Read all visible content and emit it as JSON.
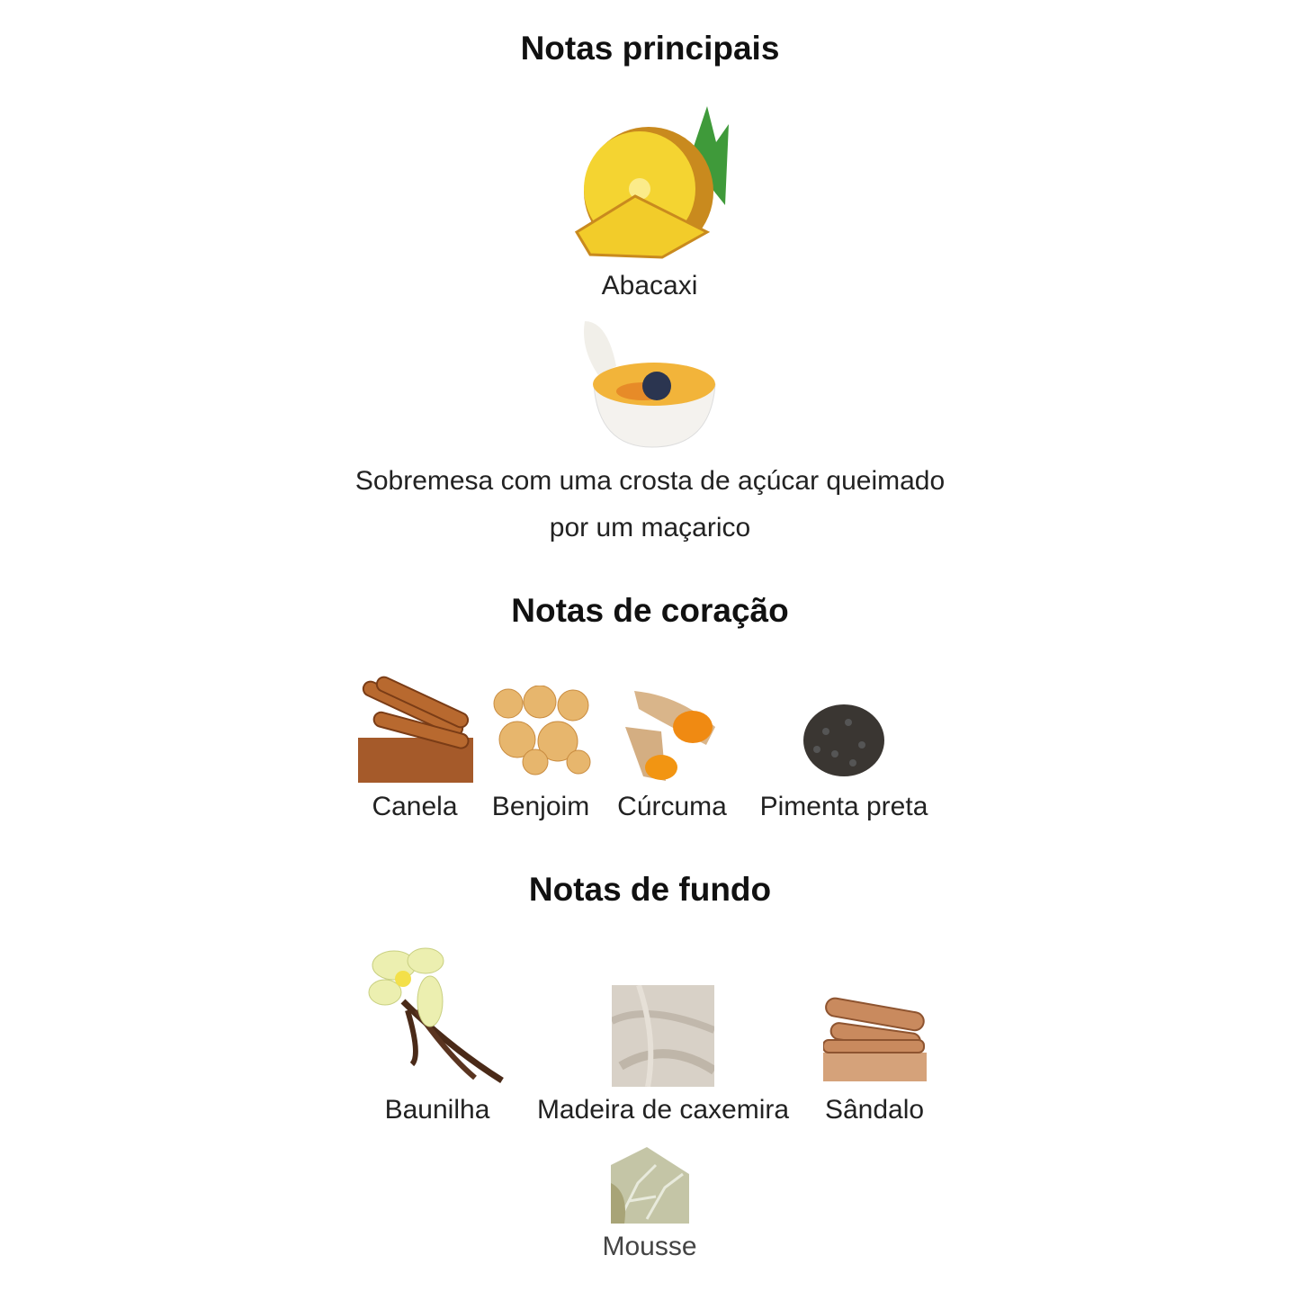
{
  "sections": [
    {
      "title": "Notas principais",
      "notes": [
        {
          "label": "Abacaxi",
          "icon": "pineapple-image"
        },
        {
          "label": "Sobremesa com uma crosta de açúcar queimado por um maçarico",
          "line1": "Sobremesa com uma crosta de açúcar queimado",
          "line2": "por um maçarico",
          "icon": "creme-brulee-image"
        }
      ]
    },
    {
      "title": "Notas de coração",
      "notes": [
        {
          "label": "Canela",
          "icon": "cinnamon-image"
        },
        {
          "label": "Benjoim",
          "icon": "benzoin-image"
        },
        {
          "label": "Cúrcuma",
          "icon": "turmeric-image"
        },
        {
          "label": "Pimenta preta",
          "icon": "black-pepper-image"
        }
      ]
    },
    {
      "title": "Notas de fundo",
      "notes": [
        {
          "label": "Baunilha",
          "icon": "vanilla-image"
        },
        {
          "label": "Madeira de caxemira",
          "icon": "cashmere-wood-image"
        },
        {
          "label": "Sândalo",
          "icon": "sandalwood-image"
        },
        {
          "label": "Mousse",
          "icon": "moss-image"
        }
      ]
    }
  ]
}
